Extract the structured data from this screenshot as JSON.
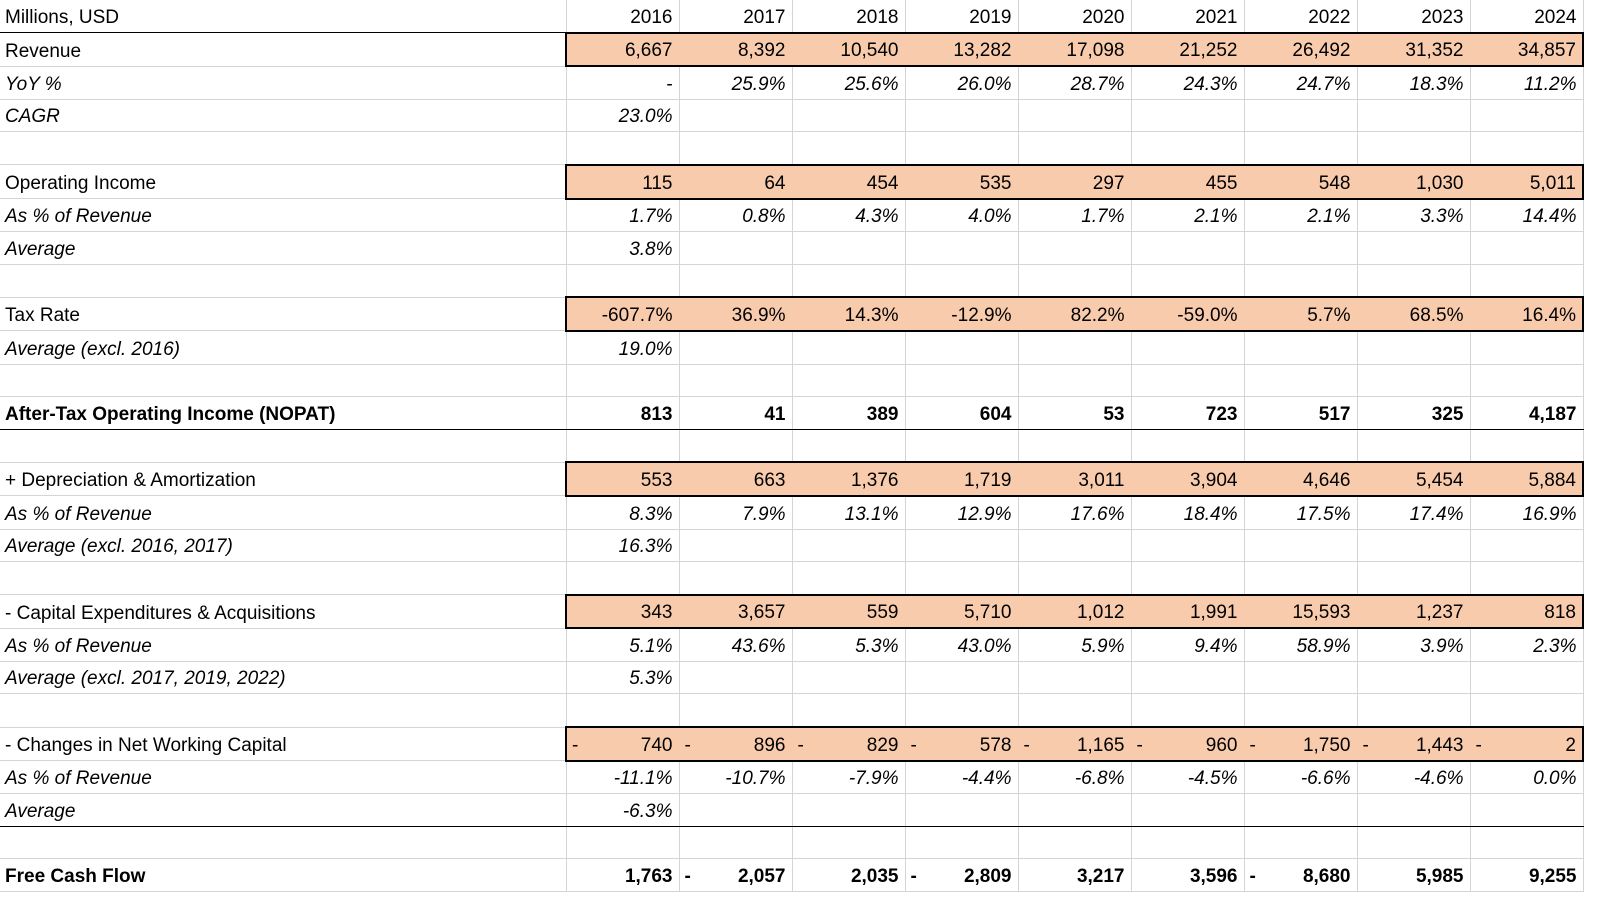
{
  "header": {
    "units": "Millions, USD",
    "years": [
      "2016",
      "2017",
      "2018",
      "2019",
      "2020",
      "2021",
      "2022",
      "2023",
      "2024"
    ]
  },
  "rows": [
    {
      "label": "Revenue",
      "style": "hl",
      "values": [
        "6,667",
        "8,392",
        "10,540",
        "13,282",
        "17,098",
        "21,252",
        "26,492",
        "31,352",
        "34,857"
      ]
    },
    {
      "label": "YoY %",
      "style": "it",
      "values": [
        "-",
        "25.9%",
        "25.6%",
        "26.0%",
        "28.7%",
        "24.3%",
        "24.7%",
        "18.3%",
        "11.2%"
      ]
    },
    {
      "label": "CAGR",
      "style": "it",
      "values": [
        "23.0%",
        "",
        "",
        "",
        "",
        "",
        "",
        "",
        ""
      ]
    },
    {
      "label": "",
      "style": "blank",
      "values": [
        "",
        "",
        "",
        "",
        "",
        "",
        "",
        "",
        ""
      ]
    },
    {
      "label": "Operating Income",
      "style": "hl",
      "values": [
        "115",
        "64",
        "454",
        "535",
        "297",
        "455",
        "548",
        "1,030",
        "5,011"
      ]
    },
    {
      "label": "As % of Revenue",
      "style": "it",
      "values": [
        "1.7%",
        "0.8%",
        "4.3%",
        "4.0%",
        "1.7%",
        "2.1%",
        "2.1%",
        "3.3%",
        "14.4%"
      ]
    },
    {
      "label": "Average",
      "style": "it",
      "values": [
        "3.8%",
        "",
        "",
        "",
        "",
        "",
        "",
        "",
        ""
      ]
    },
    {
      "label": "",
      "style": "blank",
      "values": [
        "",
        "",
        "",
        "",
        "",
        "",
        "",
        "",
        ""
      ]
    },
    {
      "label": "Tax Rate",
      "style": "hl",
      "values": [
        "-607.7%",
        "36.9%",
        "14.3%",
        "-12.9%",
        "82.2%",
        "-59.0%",
        "5.7%",
        "68.5%",
        "16.4%"
      ]
    },
    {
      "label": "Average (excl. 2016)",
      "style": "it",
      "values": [
        "19.0%",
        "",
        "",
        "",
        "",
        "",
        "",
        "",
        ""
      ]
    },
    {
      "label": "",
      "style": "blank",
      "values": [
        "",
        "",
        "",
        "",
        "",
        "",
        "",
        "",
        ""
      ]
    },
    {
      "label": "After-Tax Operating Income (NOPAT)",
      "style": "bold-rule",
      "values": [
        "813",
        "41",
        "389",
        "604",
        "53",
        "723",
        "517",
        "325",
        "4,187"
      ]
    },
    {
      "label": "",
      "style": "blank",
      "values": [
        "",
        "",
        "",
        "",
        "",
        "",
        "",
        "",
        ""
      ]
    },
    {
      "label": "+ Depreciation & Amortization",
      "style": "hl",
      "values": [
        "553",
        "663",
        "1,376",
        "1,719",
        "3,011",
        "3,904",
        "4,646",
        "5,454",
        "5,884"
      ]
    },
    {
      "label": "As % of Revenue",
      "style": "it",
      "values": [
        "8.3%",
        "7.9%",
        "13.1%",
        "12.9%",
        "17.6%",
        "18.4%",
        "17.5%",
        "17.4%",
        "16.9%"
      ]
    },
    {
      "label": "Average (excl. 2016, 2017)",
      "style": "it",
      "values": [
        "16.3%",
        "",
        "",
        "",
        "",
        "",
        "",
        "",
        ""
      ]
    },
    {
      "label": "",
      "style": "blank",
      "values": [
        "",
        "",
        "",
        "",
        "",
        "",
        "",
        "",
        ""
      ]
    },
    {
      "label": "- Capital Expenditures & Acquisitions",
      "style": "hl",
      "values": [
        "343",
        "3,657",
        "559",
        "5,710",
        "1,012",
        "1,991",
        "15,593",
        "1,237",
        "818"
      ]
    },
    {
      "label": "As % of Revenue",
      "style": "it",
      "values": [
        "5.1%",
        "43.6%",
        "5.3%",
        "43.0%",
        "5.9%",
        "9.4%",
        "58.9%",
        "3.9%",
        "2.3%"
      ]
    },
    {
      "label": "Average (excl. 2017, 2019, 2022)",
      "style": "it",
      "values": [
        "5.3%",
        "",
        "",
        "",
        "",
        "",
        "",
        "",
        ""
      ]
    },
    {
      "label": "",
      "style": "blank",
      "values": [
        "",
        "",
        "",
        "",
        "",
        "",
        "",
        "",
        ""
      ]
    },
    {
      "label": "- Changes in Net Working Capital",
      "style": "hl",
      "neg": [
        true,
        true,
        true,
        true,
        true,
        true,
        true,
        true,
        true
      ],
      "values": [
        "740",
        "896",
        "829",
        "578",
        "1,165",
        "960",
        "1,750",
        "1,443",
        "2"
      ]
    },
    {
      "label": "As % of Revenue",
      "style": "it",
      "values": [
        "-11.1%",
        "-10.7%",
        "-7.9%",
        "-4.4%",
        "-6.8%",
        "-4.5%",
        "-6.6%",
        "-4.6%",
        "0.0%"
      ]
    },
    {
      "label": "Average",
      "style": "it-rule",
      "values": [
        "-6.3%",
        "",
        "",
        "",
        "",
        "",
        "",
        "",
        ""
      ]
    },
    {
      "label": "",
      "style": "blank",
      "values": [
        "",
        "",
        "",
        "",
        "",
        "",
        "",
        "",
        ""
      ]
    },
    {
      "label": "Free Cash Flow",
      "style": "bold",
      "neg": [
        false,
        true,
        false,
        true,
        false,
        false,
        true,
        false,
        false
      ],
      "values": [
        "1,763",
        "2,057",
        "2,035",
        "2,809",
        "3,217",
        "3,596",
        "8,680",
        "5,985",
        "9,255"
      ]
    }
  ]
}
